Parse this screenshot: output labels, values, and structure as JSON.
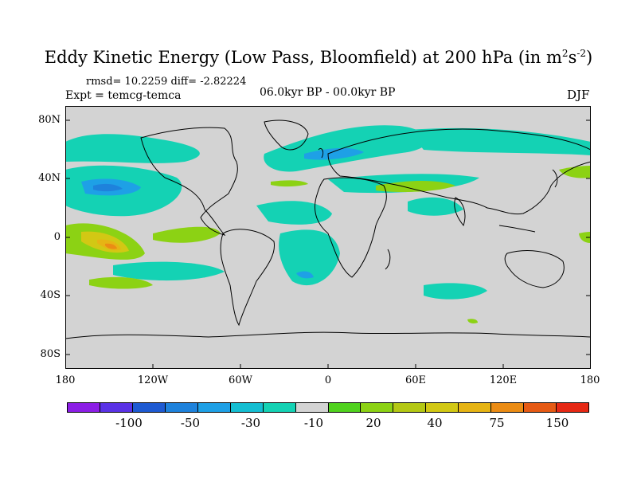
{
  "title": {
    "main": "Eddy Kinetic Energy (Low Pass, Bloomfield) at 200 hPa (in m",
    "sup1": "2",
    "mid": "s",
    "sup2": "-2",
    "end": ")"
  },
  "stats": "rmsd= 10.2259 diff= -2.82224",
  "expt": "Expt = temcg-temca",
  "period": "06.0kyr BP - 00.0kyr BP",
  "season": "DJF",
  "map": {
    "y_ticks": [
      "80N",
      "40N",
      "0",
      "40S",
      "80S"
    ],
    "x_ticks": [
      "180",
      "120W",
      "60W",
      "0",
      "60E",
      "120E",
      "180"
    ],
    "background_color": "#d3d3d3"
  },
  "colorbar": {
    "colors": [
      "#8c1ee6",
      "#5a32e6",
      "#1e5ad2",
      "#1e82dc",
      "#1ea0e6",
      "#14bed2",
      "#14d2b4",
      "#d3d3d3",
      "#50d21e",
      "#8cd214",
      "#b4c814",
      "#d2c814",
      "#e6b414",
      "#eb8c14",
      "#e65a14",
      "#e62814"
    ],
    "labels": [
      "-100",
      "-50",
      "-30",
      "-10",
      "20",
      "40",
      "75",
      "150"
    ]
  }
}
